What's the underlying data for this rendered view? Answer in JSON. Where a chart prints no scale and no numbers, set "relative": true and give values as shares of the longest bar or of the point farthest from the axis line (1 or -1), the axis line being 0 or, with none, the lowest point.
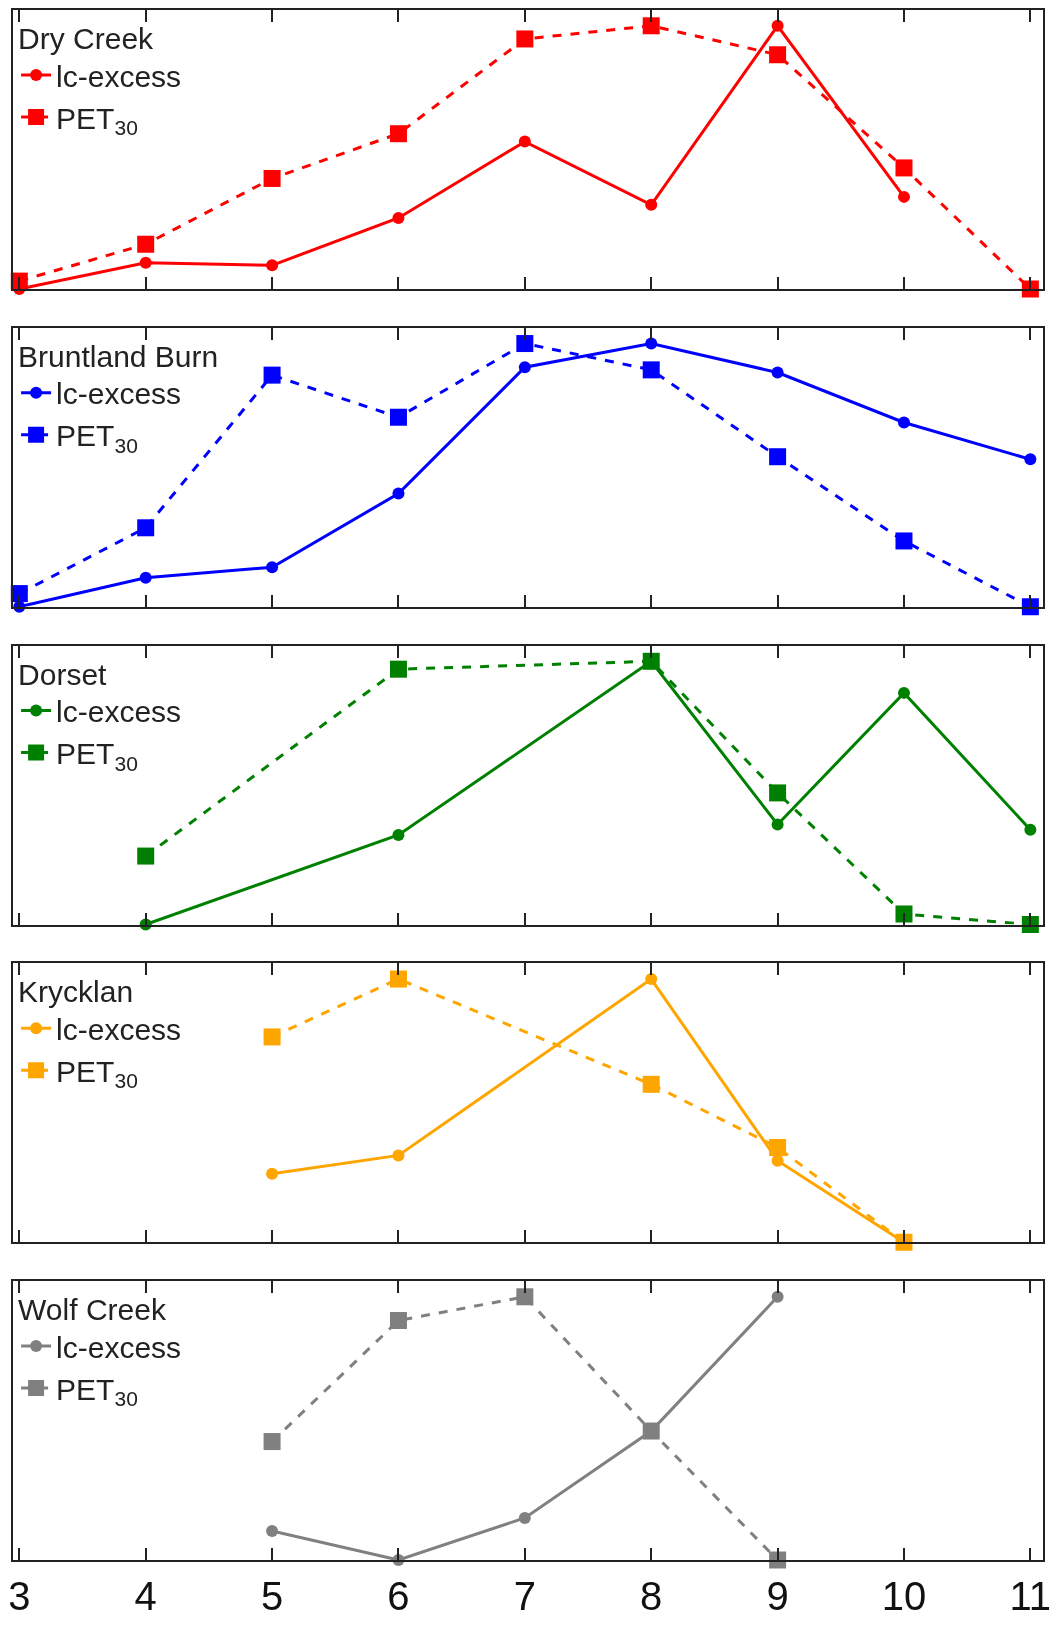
{
  "chart_data": [
    {
      "type": "line",
      "relative": true,
      "legend_title": "Dry Creek",
      "legend": "top left",
      "x": [
        3,
        4,
        5,
        6,
        7,
        8,
        9,
        10,
        11
      ],
      "xlim": [
        2.95,
        11.1
      ],
      "xticks": [
        3,
        4,
        5,
        6,
        7,
        8,
        9,
        10,
        11
      ],
      "tick_labels": false,
      "series": [
        {
          "name": "lc-excess",
          "color": "#ff0000",
          "marker": "circle",
          "line_style": "solid",
          "values": [
            0,
            0.1,
            0.09,
            0.27,
            0.56,
            0.32,
            1,
            0.35,
            null
          ]
        },
        {
          "name": "PET$_{30}$",
          "color": "#ff0000",
          "marker": "square",
          "line_style": "dashed",
          "values": [
            0.03,
            0.17,
            0.42,
            0.59,
            0.95,
            1,
            0.89,
            0.46,
            0
          ]
        }
      ]
    },
    {
      "type": "line",
      "relative": true,
      "legend_title": "Bruntland Burn",
      "legend": "top left",
      "x": [
        3,
        4,
        5,
        6,
        7,
        8,
        9,
        10,
        11
      ],
      "xlim": [
        2.95,
        11.1
      ],
      "xticks": [
        3,
        4,
        5,
        6,
        7,
        8,
        9,
        10,
        11
      ],
      "tick_labels": false,
      "series": [
        {
          "name": "lc-excess",
          "color": "#0000ff",
          "marker": "circle",
          "line_style": "solid",
          "values": [
            0,
            0.11,
            0.15,
            0.43,
            0.91,
            1,
            0.89,
            0.7,
            0.56
          ]
        },
        {
          "name": "PET$_{30}$",
          "color": "#0000ff",
          "marker": "square",
          "line_style": "dashed",
          "values": [
            0.05,
            0.3,
            0.88,
            0.72,
            1,
            0.9,
            0.57,
            0.25,
            0
          ]
        }
      ]
    },
    {
      "type": "line",
      "relative": true,
      "legend_title": "Dorset",
      "legend": "top left",
      "x": [
        4,
        6,
        8,
        9,
        10,
        11
      ],
      "xlim": [
        2.95,
        11.1
      ],
      "xticks": [
        3,
        4,
        5,
        6,
        7,
        8,
        9,
        10,
        11
      ],
      "tick_labels": false,
      "series": [
        {
          "name": "lc-excess",
          "color": "#008000",
          "marker": "circle",
          "line_style": "solid",
          "values": [
            0,
            0.34,
            1,
            0.38,
            0.88,
            0.36
          ]
        },
        {
          "name": "PET$_{30}$",
          "color": "#008000",
          "marker": "square",
          "line_style": "dashed",
          "values": [
            0.26,
            0.97,
            1,
            0.5,
            0.04,
            0
          ]
        }
      ]
    },
    {
      "type": "line",
      "relative": true,
      "legend_title": "Krycklan",
      "legend": "top left",
      "x": [
        5,
        6,
        8,
        9,
        10
      ],
      "xlim": [
        2.95,
        11.1
      ],
      "xticks": [
        3,
        4,
        5,
        6,
        7,
        8,
        9,
        10,
        11
      ],
      "tick_labels": false,
      "series": [
        {
          "name": "lc-excess",
          "color": "#ffa500",
          "marker": "circle",
          "line_style": "solid",
          "values": [
            0.26,
            0.33,
            1,
            0.31,
            0
          ]
        },
        {
          "name": "PET$_{30}$",
          "color": "#ffa500",
          "marker": "square",
          "line_style": "dashed",
          "values": [
            0.78,
            1,
            0.6,
            0.36,
            0
          ]
        }
      ]
    },
    {
      "type": "line",
      "relative": true,
      "legend_title": "Wolf Creek",
      "legend": "top left",
      "x": [
        5,
        6,
        7,
        8,
        9
      ],
      "xlim": [
        2.95,
        11.1
      ],
      "xticks": [
        3,
        4,
        5,
        6,
        7,
        8,
        9,
        10,
        11
      ],
      "tick_labels": "x",
      "series": [
        {
          "name": "lc-excess",
          "color": "#808080",
          "marker": "circle",
          "line_style": "solid",
          "values": [
            0.11,
            0,
            0.16,
            0.49,
            1
          ]
        },
        {
          "name": "PET$_{30}$",
          "color": "#808080",
          "marker": "square",
          "line_style": "dashed",
          "values": [
            0.45,
            0.91,
            1,
            0.49,
            0
          ]
        }
      ]
    }
  ]
}
